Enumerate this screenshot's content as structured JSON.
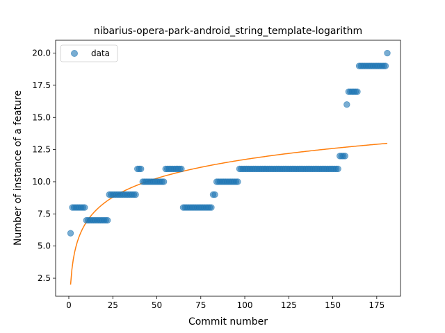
{
  "chart_data": {
    "type": "scatter",
    "title": "nibarius-opera-park-android_string_template-logarithm",
    "xlabel": "Commit number",
    "ylabel": "Number of instance of a feature",
    "xlim": [
      -7.5,
      188.5
    ],
    "ylim": [
      1.1,
      21.0
    ],
    "xticks": [
      0,
      25,
      50,
      75,
      100,
      125,
      150,
      175
    ],
    "yticks": [
      2.5,
      5.0,
      7.5,
      10.0,
      12.5,
      15.0,
      17.5,
      20.0
    ],
    "legend": {
      "position": "top-left",
      "entries": [
        "data"
      ]
    },
    "colors": {
      "points": "#1f77b4",
      "fit": "#ff7f0e"
    },
    "series": [
      {
        "name": "data",
        "kind": "points",
        "runs": [
          [
            1,
            1,
            6
          ],
          [
            2,
            9,
            8
          ],
          [
            10,
            22,
            7
          ],
          [
            23,
            38,
            9
          ],
          [
            39,
            41,
            11
          ],
          [
            42,
            54,
            10
          ],
          [
            55,
            64,
            11
          ],
          [
            65,
            81,
            8
          ],
          [
            82,
            83,
            9
          ],
          [
            84,
            96,
            10
          ],
          [
            97,
            153,
            11
          ],
          [
            154,
            157,
            12
          ],
          [
            158,
            158,
            16
          ],
          [
            159,
            164,
            17
          ],
          [
            165,
            180,
            19
          ],
          [
            181,
            181,
            20
          ]
        ]
      },
      {
        "name": "",
        "kind": "line",
        "x_range": [
          1,
          181
        ],
        "a": 2.0,
        "b": 2.113
      }
    ]
  }
}
